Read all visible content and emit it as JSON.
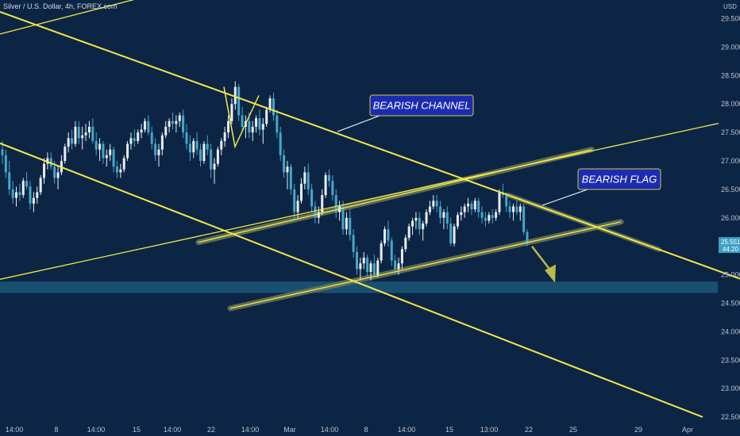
{
  "header": {
    "symbol_title": "Silver / U.S. Dollar, 4h, FOREX.com"
  },
  "colors": {
    "background": "#0d2545",
    "trendline": "#f5e84a",
    "candle_up": "#e8edf3",
    "candle_down": "#45a7c9",
    "support_zone": "#1b5577",
    "band": "#6a7a58",
    "price_tag": "#3f9fc4",
    "annotation_box": "#1c2cb0"
  },
  "chart_data": {
    "type": "candlestick",
    "symbol": "Silver / U.S. Dollar, 4h, FOREX.com",
    "timeframe": "4h",
    "y_axis": {
      "unit_label": "USD",
      "range": [
        22.4,
        29.75
      ],
      "ticks": [
        "29.500",
        "29.000",
        "28.500",
        "28.000",
        "27.500",
        "27.000",
        "26.500",
        "26.000",
        "25.500",
        "25.000",
        "24.500",
        "24.000",
        "23.500",
        "23.000",
        "22.500"
      ]
    },
    "x_axis": {
      "tick_labels": [
        "14:00",
        "8",
        "14:00",
        "15",
        "14:00",
        "22",
        "14:00",
        "Mar",
        "14:00",
        "8",
        "14:00",
        "15",
        "13:00",
        "22",
        "25",
        "29",
        "Apr"
      ]
    },
    "last_price": {
      "value": "25.551",
      "countdown": "44:20"
    },
    "annotations": [
      {
        "text": "BEARISH CHANNEL"
      },
      {
        "text": "BEARISH FLAG"
      }
    ],
    "support_zone": {
      "from": 24.68,
      "to": 24.88
    },
    "trendlines": [
      {
        "name": "channel-upper",
        "p1": [
          0,
          29.62
        ],
        "p2": [
          932,
          24.93
        ]
      },
      {
        "name": "channel-lower",
        "p1": [
          0,
          27.31
        ],
        "p2": [
          885,
          22.5
        ]
      },
      {
        "name": "long-rising-line",
        "p1": [
          0,
          24.92
        ],
        "p2": [
          905,
          27.66
        ]
      },
      {
        "name": "flag-upper",
        "p1": [
          250,
          25.57
        ],
        "p2": [
          745,
          27.2
        ]
      },
      {
        "name": "flag-lower",
        "p1": [
          290,
          24.41
        ],
        "p2": [
          782,
          25.93
        ]
      },
      {
        "name": "top-left-line",
        "p1": [
          0,
          29.23
        ],
        "p2": [
          215,
          30.0
        ]
      },
      {
        "name": "double-top-zigzag",
        "p1": [
          282,
          28.3
        ],
        "p2": [
          296,
          27.25
        ]
      }
    ],
    "candles": [
      [
        27.2,
        27.35,
        26.95,
        27.1
      ],
      [
        27.1,
        27.2,
        26.7,
        26.8
      ],
      [
        26.8,
        27.0,
        26.4,
        26.5
      ],
      [
        26.5,
        26.65,
        26.25,
        26.35
      ],
      [
        26.35,
        26.55,
        26.2,
        26.45
      ],
      [
        26.45,
        26.6,
        26.3,
        26.4
      ],
      [
        26.4,
        26.7,
        26.35,
        26.65
      ],
      [
        26.65,
        26.8,
        26.5,
        26.55
      ],
      [
        26.55,
        26.65,
        26.15,
        26.25
      ],
      [
        26.25,
        26.45,
        26.1,
        26.35
      ],
      [
        26.35,
        26.55,
        26.25,
        26.45
      ],
      [
        26.45,
        26.75,
        26.4,
        26.7
      ],
      [
        26.7,
        27.05,
        26.6,
        26.95
      ],
      [
        26.95,
        27.15,
        26.85,
        27.05
      ],
      [
        27.05,
        27.15,
        26.85,
        26.9
      ],
      [
        26.9,
        27.0,
        26.6,
        26.7
      ],
      [
        26.7,
        26.9,
        26.5,
        26.8
      ],
      [
        26.8,
        27.1,
        26.75,
        27.0
      ],
      [
        27.0,
        27.3,
        26.95,
        27.25
      ],
      [
        27.25,
        27.5,
        27.15,
        27.4
      ],
      [
        27.4,
        27.55,
        27.2,
        27.3
      ],
      [
        27.3,
        27.7,
        27.25,
        27.6
      ],
      [
        27.6,
        27.7,
        27.3,
        27.4
      ],
      [
        27.4,
        27.6,
        27.2,
        27.45
      ],
      [
        27.45,
        27.65,
        27.35,
        27.5
      ],
      [
        27.5,
        27.7,
        27.4,
        27.6
      ],
      [
        27.6,
        27.75,
        27.3,
        27.35
      ],
      [
        27.35,
        27.5,
        27.1,
        27.2
      ],
      [
        27.2,
        27.4,
        27.0,
        27.3
      ],
      [
        27.3,
        27.35,
        26.95,
        27.05
      ],
      [
        27.05,
        27.2,
        26.9,
        27.1
      ],
      [
        27.1,
        27.3,
        27.0,
        27.2
      ],
      [
        27.2,
        27.25,
        26.8,
        26.9
      ],
      [
        26.9,
        27.0,
        26.7,
        26.8
      ],
      [
        26.8,
        26.95,
        26.7,
        26.85
      ],
      [
        26.85,
        27.1,
        26.8,
        27.05
      ],
      [
        27.05,
        27.35,
        27.0,
        27.3
      ],
      [
        27.3,
        27.5,
        27.2,
        27.4
      ],
      [
        27.4,
        27.55,
        27.25,
        27.35
      ],
      [
        27.35,
        27.55,
        27.3,
        27.5
      ],
      [
        27.5,
        27.65,
        27.4,
        27.55
      ],
      [
        27.55,
        27.75,
        27.5,
        27.7
      ],
      [
        27.7,
        27.8,
        27.45,
        27.5
      ],
      [
        27.5,
        27.6,
        27.2,
        27.3
      ],
      [
        27.3,
        27.4,
        27.0,
        27.1
      ],
      [
        27.1,
        27.3,
        26.9,
        27.2
      ],
      [
        27.2,
        27.5,
        27.1,
        27.45
      ],
      [
        27.45,
        27.7,
        27.4,
        27.6
      ],
      [
        27.6,
        27.75,
        27.5,
        27.7
      ],
      [
        27.7,
        27.85,
        27.55,
        27.65
      ],
      [
        27.65,
        27.8,
        27.5,
        27.7
      ],
      [
        27.7,
        27.85,
        27.6,
        27.8
      ],
      [
        27.8,
        27.9,
        27.4,
        27.5
      ],
      [
        27.5,
        27.65,
        27.2,
        27.3
      ],
      [
        27.3,
        27.45,
        27.0,
        27.15
      ],
      [
        27.15,
        27.4,
        27.05,
        27.35
      ],
      [
        27.35,
        27.5,
        27.1,
        27.2
      ],
      [
        27.2,
        27.3,
        26.9,
        27.0
      ],
      [
        27.0,
        27.35,
        26.95,
        27.3
      ],
      [
        27.3,
        27.45,
        27.1,
        27.2
      ],
      [
        27.2,
        27.3,
        26.7,
        26.85
      ],
      [
        26.85,
        27.05,
        26.6,
        26.95
      ],
      [
        26.95,
        27.25,
        26.9,
        27.2
      ],
      [
        27.2,
        27.4,
        27.1,
        27.35
      ],
      [
        27.35,
        27.6,
        27.25,
        27.5
      ],
      [
        27.5,
        27.8,
        27.4,
        27.7
      ],
      [
        27.7,
        28.1,
        27.65,
        28.0
      ],
      [
        28.0,
        28.4,
        27.9,
        28.3
      ],
      [
        28.3,
        28.35,
        27.7,
        27.8
      ],
      [
        27.8,
        27.95,
        27.5,
        27.6
      ],
      [
        27.6,
        27.8,
        27.4,
        27.7
      ],
      [
        27.7,
        27.85,
        27.4,
        27.5
      ],
      [
        27.5,
        27.7,
        27.35,
        27.6
      ],
      [
        27.6,
        27.8,
        27.5,
        27.75
      ],
      [
        27.75,
        27.9,
        27.45,
        27.55
      ],
      [
        27.55,
        27.75,
        27.3,
        27.65
      ],
      [
        27.65,
        27.95,
        27.6,
        27.9
      ],
      [
        27.9,
        28.15,
        27.85,
        28.1
      ],
      [
        28.1,
        28.2,
        27.7,
        27.8
      ],
      [
        27.8,
        27.9,
        27.4,
        27.5
      ],
      [
        27.5,
        27.6,
        27.0,
        27.1
      ],
      [
        27.1,
        27.2,
        26.7,
        26.8
      ],
      [
        26.8,
        27.0,
        26.5,
        26.9
      ],
      [
        26.9,
        26.95,
        26.4,
        26.5
      ],
      [
        26.5,
        26.6,
        26.0,
        26.1
      ],
      [
        26.1,
        26.4,
        26.0,
        26.3
      ],
      [
        26.3,
        26.7,
        26.25,
        26.6
      ],
      [
        26.6,
        26.9,
        26.5,
        26.8
      ],
      [
        26.8,
        26.95,
        26.4,
        26.5
      ],
      [
        26.5,
        26.6,
        26.1,
        26.2
      ],
      [
        26.2,
        26.3,
        25.9,
        26.0
      ],
      [
        26.0,
        26.2,
        25.9,
        26.1
      ],
      [
        26.1,
        26.5,
        26.05,
        26.4
      ],
      [
        26.4,
        26.8,
        26.35,
        26.75
      ],
      [
        26.75,
        26.85,
        26.55,
        26.65
      ],
      [
        26.65,
        26.75,
        26.3,
        26.4
      ],
      [
        26.4,
        26.5,
        26.0,
        26.1
      ],
      [
        26.1,
        26.3,
        25.95,
        26.2
      ],
      [
        26.2,
        26.3,
        25.7,
        25.8
      ],
      [
        25.8,
        26.1,
        25.7,
        26.0
      ],
      [
        26.0,
        26.15,
        25.6,
        25.7
      ],
      [
        25.7,
        25.8,
        25.3,
        25.4
      ],
      [
        25.4,
        25.5,
        25.0,
        25.1
      ],
      [
        25.1,
        25.3,
        24.9,
        25.2
      ],
      [
        25.2,
        25.4,
        25.1,
        25.3
      ],
      [
        25.3,
        25.35,
        24.95,
        25.05
      ],
      [
        25.05,
        25.25,
        24.9,
        25.2
      ],
      [
        25.2,
        25.35,
        24.95,
        25.0
      ],
      [
        25.0,
        25.3,
        24.95,
        25.25
      ],
      [
        25.25,
        25.6,
        25.2,
        25.55
      ],
      [
        25.55,
        25.85,
        25.5,
        25.8
      ],
      [
        25.8,
        25.95,
        25.5,
        25.6
      ],
      [
        25.6,
        25.65,
        25.15,
        25.25
      ],
      [
        25.25,
        25.35,
        25.0,
        25.1
      ],
      [
        25.1,
        25.3,
        25.0,
        25.2
      ],
      [
        25.2,
        25.5,
        25.1,
        25.45
      ],
      [
        25.45,
        25.7,
        25.4,
        25.65
      ],
      [
        25.65,
        25.9,
        25.6,
        25.85
      ],
      [
        25.85,
        26.0,
        25.7,
        25.95
      ],
      [
        25.95,
        26.1,
        25.8,
        26.0
      ],
      [
        26.0,
        26.1,
        25.7,
        25.8
      ],
      [
        25.8,
        25.95,
        25.6,
        25.9
      ],
      [
        25.9,
        26.15,
        25.85,
        26.1
      ],
      [
        26.1,
        26.3,
        26.05,
        26.2
      ],
      [
        26.2,
        26.4,
        26.15,
        26.3
      ],
      [
        26.3,
        26.4,
        26.1,
        26.2
      ],
      [
        26.2,
        26.3,
        25.9,
        26.0
      ],
      [
        26.0,
        26.15,
        25.8,
        26.1
      ],
      [
        26.1,
        26.2,
        25.8,
        25.9
      ],
      [
        25.9,
        26.0,
        25.5,
        25.55
      ],
      [
        25.55,
        25.9,
        25.5,
        25.85
      ],
      [
        25.85,
        26.1,
        25.8,
        26.05
      ],
      [
        26.05,
        26.2,
        25.95,
        26.1
      ],
      [
        26.1,
        26.25,
        26.0,
        26.2
      ],
      [
        26.2,
        26.35,
        26.1,
        26.25
      ],
      [
        26.25,
        26.3,
        26.05,
        26.15
      ],
      [
        26.15,
        26.35,
        26.1,
        26.3
      ],
      [
        26.3,
        26.35,
        26.0,
        26.1
      ],
      [
        26.1,
        26.2,
        25.9,
        26.0
      ],
      [
        26.0,
        26.1,
        25.85,
        25.95
      ],
      [
        25.95,
        26.1,
        25.9,
        26.05
      ],
      [
        26.05,
        26.15,
        25.9,
        26.0
      ],
      [
        26.0,
        26.15,
        25.95,
        26.1
      ],
      [
        26.1,
        26.5,
        26.05,
        26.45
      ],
      [
        26.45,
        26.6,
        26.35,
        26.4
      ],
      [
        26.4,
        26.45,
        26.1,
        26.2
      ],
      [
        26.2,
        26.3,
        26.0,
        26.1
      ],
      [
        26.1,
        26.25,
        25.95,
        26.2
      ],
      [
        26.2,
        26.3,
        26.05,
        26.1
      ],
      [
        26.1,
        26.25,
        25.95,
        26.2
      ],
      [
        26.2,
        26.25,
        25.7,
        25.75
      ],
      [
        25.75,
        25.8,
        25.5,
        25.55
      ]
    ]
  }
}
